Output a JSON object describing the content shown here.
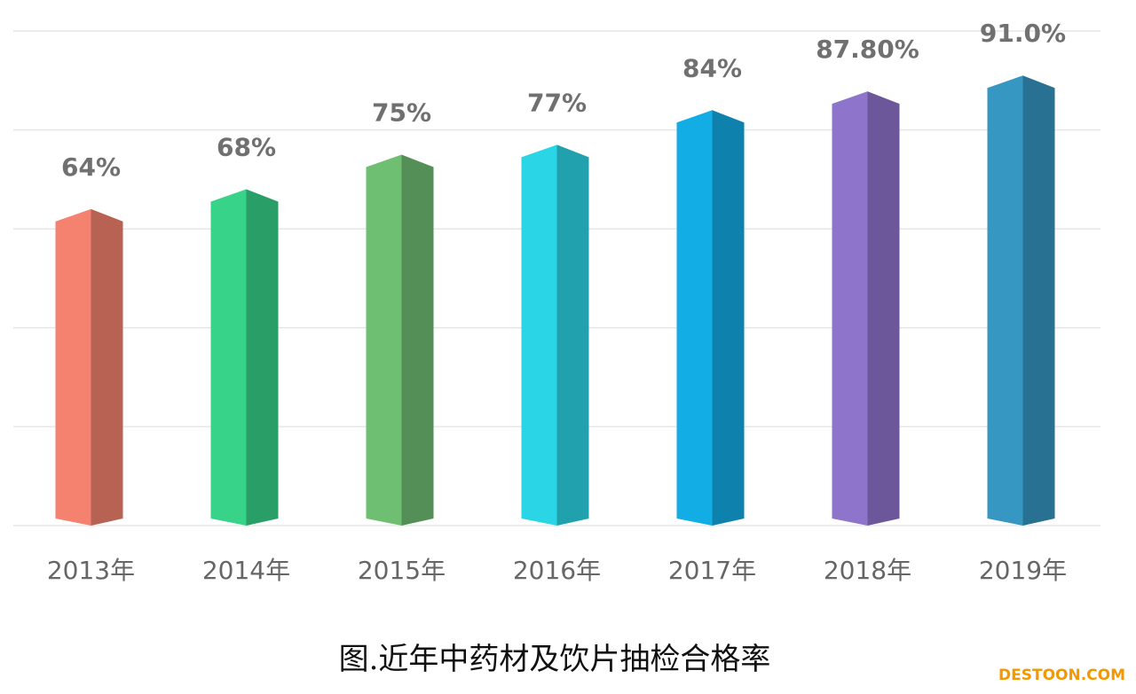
{
  "chart_data": {
    "type": "bar",
    "title": "图.近年中药材及饮片抽检合格率",
    "categories": [
      "2013年",
      "2014年",
      "2015年",
      "2016年",
      "2017年",
      "2018年",
      "2019年"
    ],
    "values": [
      64,
      68,
      75,
      77,
      84,
      87.8,
      91.0
    ],
    "value_labels": [
      "64%",
      "68%",
      "75%",
      "77%",
      "84%",
      "87.80%",
      "91.0%"
    ],
    "colors": [
      "#f4826f",
      "#36d388",
      "#6fbf72",
      "#2ad6e6",
      "#13ade6",
      "#8f74cc",
      "#3597c2"
    ],
    "ylim": [
      0,
      100
    ],
    "yticks": [
      0,
      20,
      40,
      60,
      80,
      100
    ],
    "grid": true,
    "watermark": "DESTOON.COM"
  }
}
